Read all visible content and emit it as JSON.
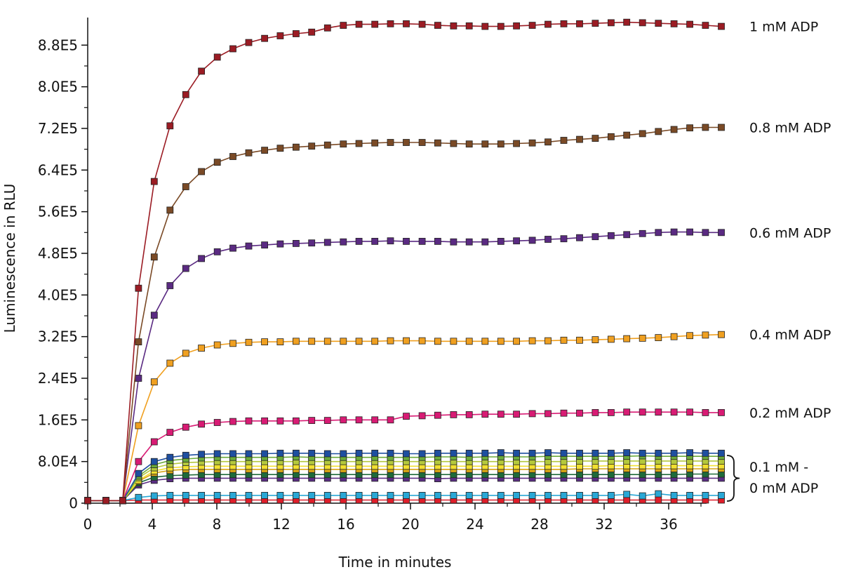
{
  "chart_data": {
    "type": "line",
    "title": "",
    "xlabel": "Time in minutes",
    "ylabel": "Luminescence in RLU",
    "xlim": [
      0,
      39
    ],
    "ylim": [
      0,
      940000
    ],
    "x_ticks": [
      {
        "value": 0,
        "label": "0"
      },
      {
        "value": 4,
        "label": "4"
      },
      {
        "value": 8,
        "label": "8"
      },
      {
        "value": 12,
        "label": "12"
      },
      {
        "value": 16,
        "label": "16"
      },
      {
        "value": 20,
        "label": "20"
      },
      {
        "value": 24,
        "label": "24"
      },
      {
        "value": 28,
        "label": "28"
      },
      {
        "value": 32,
        "label": "32"
      },
      {
        "value": 36,
        "label": "36"
      }
    ],
    "y_ticks": [
      {
        "value": 0,
        "label": "0"
      },
      {
        "value": 80000,
        "label": "8.0E4"
      },
      {
        "value": 160000,
        "label": "1.6E5"
      },
      {
        "value": 240000,
        "label": "2.4E5"
      },
      {
        "value": 320000,
        "label": "3.2E5"
      },
      {
        "value": 400000,
        "label": "4.0E5"
      },
      {
        "value": 480000,
        "label": "4.8E5"
      },
      {
        "value": 560000,
        "label": "5.6E5"
      },
      {
        "value": 640000,
        "label": "6.4E5"
      },
      {
        "value": 720000,
        "label": "7.2E5"
      },
      {
        "value": 800000,
        "label": "8.0E5"
      },
      {
        "value": 880000,
        "label": "8.8E5"
      }
    ],
    "grid": false,
    "x": [
      0.0,
      1.13,
      2.17,
      3.15,
      4.12,
      5.1,
      6.08,
      7.05,
      8.03,
      9.0,
      9.98,
      10.96,
      11.93,
      12.91,
      13.88,
      14.86,
      15.84,
      16.81,
      17.79,
      18.76,
      19.74,
      20.72,
      21.69,
      22.67,
      23.64,
      24.62,
      25.6,
      26.57,
      27.55,
      28.52,
      29.5,
      30.48,
      31.45,
      32.43,
      33.4,
      34.38,
      35.36,
      36.33,
      37.31,
      38.28,
      39.26
    ],
    "series": [
      {
        "name": "1 mM ADP",
        "color": "#9b1c24",
        "label": "1 mM ADP",
        "values": [
          5000,
          5000,
          5000,
          413000,
          618000,
          725000,
          785000,
          830000,
          857000,
          873000,
          885000,
          893000,
          898000,
          902000,
          905000,
          913000,
          918000,
          920000,
          920000,
          921000,
          921000,
          920000,
          918000,
          917000,
          917000,
          916000,
          916000,
          917000,
          918000,
          920000,
          921000,
          921000,
          922000,
          923000,
          924000,
          923000,
          922000,
          921000,
          920000,
          918000,
          916000
        ]
      },
      {
        "name": "0.8 mM ADP",
        "color": "#7a4a26",
        "label": "0.8 mM ADP",
        "values": [
          5000,
          5000,
          5000,
          310000,
          473000,
          563000,
          608000,
          637000,
          655000,
          666000,
          673000,
          678000,
          682000,
          684000,
          686000,
          688000,
          690000,
          691000,
          692000,
          693000,
          693000,
          693000,
          692000,
          691000,
          690000,
          690000,
          690000,
          691000,
          692000,
          694000,
          697000,
          699000,
          701000,
          704000,
          707000,
          710000,
          714000,
          718000,
          721000,
          722000,
          722000
        ]
      },
      {
        "name": "0.6 mM ADP",
        "color": "#5a2a82",
        "label": "0.6 mM ADP",
        "values": [
          5000,
          5000,
          5000,
          240000,
          361000,
          418000,
          451000,
          470000,
          483000,
          490000,
          494000,
          496000,
          498000,
          499000,
          500000,
          501000,
          502000,
          503000,
          503000,
          504000,
          503000,
          503000,
          503000,
          502000,
          502000,
          502000,
          503000,
          504000,
          505000,
          507000,
          508000,
          510000,
          512000,
          514000,
          516000,
          518000,
          520000,
          521000,
          521000,
          520000,
          520000
        ]
      },
      {
        "name": "0.4 mM ADP",
        "color": "#f0a020",
        "label": "0.4 mM ADP",
        "values": [
          5000,
          5000,
          5000,
          149000,
          233000,
          269000,
          288000,
          298000,
          304000,
          307000,
          309000,
          310000,
          310000,
          311000,
          311000,
          311000,
          311000,
          311000,
          311000,
          312000,
          312000,
          312000,
          311000,
          311000,
          311000,
          311000,
          311000,
          311000,
          312000,
          312000,
          313000,
          313000,
          314000,
          315000,
          316000,
          317000,
          318000,
          320000,
          322000,
          323000,
          324000
        ]
      },
      {
        "name": "0.2 mM ADP",
        "color": "#d81b74",
        "label": "0.2 mM ADP",
        "values": [
          5000,
          5000,
          5000,
          80000,
          118000,
          136000,
          146000,
          152000,
          155000,
          157000,
          158000,
          158000,
          158000,
          158000,
          159000,
          159000,
          160000,
          160000,
          160000,
          160000,
          167000,
          168000,
          169000,
          170000,
          170000,
          171000,
          171000,
          171000,
          172000,
          172000,
          173000,
          173000,
          174000,
          174000,
          175000,
          175000,
          175000,
          175000,
          175000,
          174000,
          174000
        ]
      },
      {
        "name": "",
        "color": "#1e4fa0",
        "label": "",
        "values": [
          5000,
          5000,
          5000,
          57000,
          80000,
          88000,
          92000,
          94000,
          95000,
          95000,
          95000,
          95000,
          96000,
          96000,
          96000,
          95000,
          95000,
          96000,
          96000,
          96000,
          95000,
          95000,
          96000,
          96000,
          96000,
          96000,
          97000,
          96000,
          96000,
          97000,
          96000,
          96000,
          96000,
          96000,
          97000,
          96000,
          96000,
          96000,
          97000,
          96000,
          96000
        ]
      },
      {
        "name": "",
        "color": "#6aaa3a",
        "label": "",
        "values": [
          5000,
          5000,
          5000,
          52000,
          74000,
          82000,
          85000,
          87000,
          88000,
          88000,
          88000,
          88000,
          88000,
          89000,
          88000,
          88000,
          88000,
          88000,
          88000,
          88000,
          88000,
          88000,
          89000,
          89000,
          88000,
          89000,
          89000,
          89000,
          89000,
          90000,
          90000,
          90000,
          90000,
          90000,
          90000,
          91000,
          90000,
          90000,
          90000,
          90000,
          90000
        ]
      },
      {
        "name": "",
        "color": "#b4c83c",
        "label": "",
        "values": [
          5000,
          5000,
          5000,
          49000,
          68000,
          75000,
          78000,
          79000,
          80000,
          80000,
          80000,
          80000,
          80000,
          80000,
          80000,
          80000,
          80000,
          80000,
          80000,
          80000,
          80000,
          80000,
          80000,
          80000,
          80000,
          80000,
          80000,
          80000,
          80000,
          80000,
          80000,
          81000,
          81000,
          81000,
          81000,
          81000,
          81000,
          81000,
          81000,
          81000,
          81000
        ]
      },
      {
        "name": "",
        "color": "#f2e030",
        "label": "",
        "values": [
          5000,
          5000,
          5000,
          44000,
          62000,
          68000,
          70000,
          71000,
          71000,
          71000,
          71000,
          71000,
          71000,
          71000,
          71000,
          71000,
          71000,
          71000,
          71000,
          71000,
          71000,
          71000,
          71000,
          71000,
          71000,
          71000,
          71000,
          71000,
          71000,
          71000,
          71000,
          71000,
          71000,
          72000,
          72000,
          72000,
          72000,
          72000,
          72000,
          72000,
          72000
        ]
      },
      {
        "name": "",
        "color": "#d9a514",
        "label": "",
        "values": [
          5000,
          5000,
          5000,
          42000,
          58000,
          63000,
          65000,
          65000,
          65000,
          65000,
          65000,
          65000,
          65000,
          65000,
          65000,
          65000,
          65000,
          65000,
          65000,
          65000,
          65000,
          65000,
          65000,
          65000,
          65000,
          65000,
          65000,
          65000,
          65000,
          65000,
          65000,
          66000,
          66000,
          66000,
          66000,
          66000,
          66000,
          66000,
          66000,
          66000,
          66000
        ]
      },
      {
        "name": "",
        "color": "#1f6b3a",
        "label": "",
        "values": [
          5000,
          5000,
          5000,
          39000,
          50000,
          53000,
          54000,
          55000,
          55000,
          55000,
          55000,
          55000,
          55000,
          55000,
          55000,
          55000,
          55000,
          55000,
          55000,
          55000,
          55000,
          55000,
          55000,
          55000,
          55000,
          55000,
          55000,
          55000,
          55000,
          55000,
          55000,
          55000,
          55000,
          55000,
          55000,
          55000,
          55000,
          55000,
          56000,
          56000,
          56000
        ]
      },
      {
        "name": "",
        "color": "#5b2d84",
        "label": "",
        "values": [
          5000,
          5000,
          5000,
          35000,
          44000,
          47000,
          48000,
          48000,
          48000,
          48000,
          48000,
          48000,
          48000,
          48000,
          48000,
          48000,
          48000,
          48000,
          48000,
          48000,
          48000,
          48000,
          47000,
          48000,
          48000,
          48000,
          48000,
          48000,
          48000,
          48000,
          48000,
          48000,
          48000,
          48000,
          48000,
          48000,
          48000,
          48000,
          48000,
          48000,
          48000
        ]
      },
      {
        "name": "",
        "color": "#29a8d6",
        "label": "",
        "values": [
          5000,
          5000,
          5000,
          11000,
          14000,
          15000,
          15000,
          15000,
          15000,
          15000,
          15000,
          15000,
          15000,
          15000,
          15000,
          15000,
          15000,
          15000,
          15000,
          15000,
          15000,
          15000,
          15000,
          15000,
          15000,
          15000,
          15000,
          15000,
          15000,
          15000,
          15000,
          15000,
          15000,
          15000,
          17000,
          14000,
          18000,
          15000,
          15000,
          15000,
          15000
        ]
      },
      {
        "name": "",
        "color": "#e01e2a",
        "label": "",
        "values": [
          5000,
          5000,
          5000,
          6000,
          6000,
          6000,
          6000,
          6000,
          6000,
          6000,
          6000,
          6000,
          6000,
          6000,
          6000,
          6000,
          6000,
          6000,
          6000,
          6000,
          6000,
          6000,
          6000,
          6000,
          6000,
          6000,
          6000,
          6000,
          6000,
          6000,
          6000,
          6000,
          6000,
          6000,
          6000,
          6000,
          6000,
          6000,
          6000,
          6000,
          6000
        ]
      }
    ],
    "bracket_label": [
      "0.1 mM -",
      "0 mM ADP"
    ],
    "legend": "right-side labels"
  }
}
